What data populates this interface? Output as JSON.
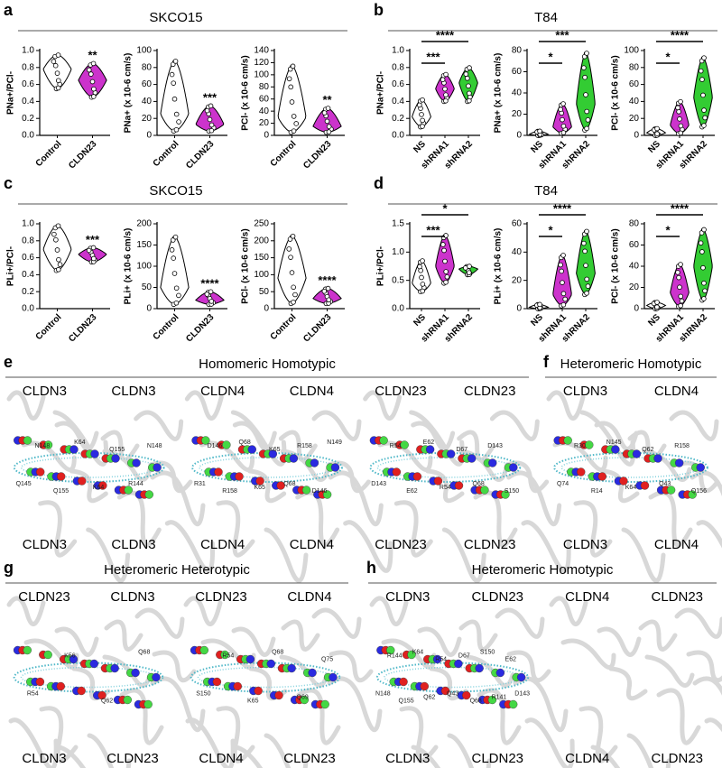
{
  "panels": [
    {
      "letter": "a",
      "title": "SKCO15",
      "brackets": false,
      "plots": [
        {
          "ylabel": "PNa+/PCl-",
          "ylim": [
            0,
            1
          ],
          "yticks": [
            {
              "value": 0,
              "label": "0.0"
            },
            {
              "value": 0.2,
              "label": "0.2"
            },
            {
              "value": 0.4,
              "label": "0.4"
            },
            {
              "value": 0.6,
              "label": "0.6"
            },
            {
              "value": 0.8,
              "label": "0.8"
            },
            {
              "value": 1,
              "label": "1.0"
            }
          ],
          "categories": [
            "Control",
            "CLDN23"
          ],
          "colors": [
            "#ffffff",
            "#cc33cc"
          ],
          "values": [
            0.78,
            0.65
          ],
          "ranges": [
            [
              0.55,
              0.95
            ],
            [
              0.45,
              0.85
            ]
          ],
          "significance": [
            null,
            "**"
          ]
        },
        {
          "ylabel": "PNa+ (x 10-6 cm/s)",
          "ylim": [
            0,
            100
          ],
          "yticks": [
            0,
            20,
            40,
            60,
            80,
            100
          ],
          "categories": [
            "Control",
            "CLDN23"
          ],
          "colors": [
            "#ffffff",
            "#cc33cc"
          ],
          "values": [
            25,
            13
          ],
          "ranges": [
            [
              5,
              88
            ],
            [
              5,
              35
            ]
          ],
          "significance": [
            null,
            "***"
          ]
        },
        {
          "ylabel": "PCl- (x 10-6 cm/s)",
          "ylim": [
            0,
            140
          ],
          "yticks": [
            0,
            20,
            40,
            60,
            80,
            100,
            120,
            140
          ],
          "categories": [
            "Control",
            "CLDN23"
          ],
          "colors": [
            "#ffffff",
            "#cc33cc"
          ],
          "values": [
            30,
            15
          ],
          "ranges": [
            [
              5,
              115
            ],
            [
              5,
              45
            ]
          ],
          "significance": [
            null,
            "**"
          ]
        }
      ]
    },
    {
      "letter": "b",
      "title": "T84",
      "brackets": true,
      "plots": [
        {
          "ylabel": "PNa+/PCl-",
          "ylim": [
            0,
            1
          ],
          "yticks": [
            {
              "value": 0,
              "label": "0.0"
            },
            {
              "value": 0.2,
              "label": "0.2"
            },
            {
              "value": 0.4,
              "label": "0.4"
            },
            {
              "value": 0.6,
              "label": "0.6"
            },
            {
              "value": 0.8,
              "label": "0.8"
            },
            {
              "value": 1,
              "label": "1.0"
            }
          ],
          "categories": [
            "NS",
            "shRNA1",
            "shRNA2"
          ],
          "colors": [
            "#ffffff",
            "#cc33cc",
            "#33cc33"
          ],
          "values": [
            0.22,
            0.55,
            0.62
          ],
          "ranges": [
            [
              0.1,
              0.42
            ],
            [
              0.4,
              0.72
            ],
            [
              0.4,
              0.8
            ]
          ],
          "significance": [
            null,
            "***",
            "****"
          ]
        },
        {
          "ylabel": "PNa+ (x 10-6 cm/s)",
          "ylim": [
            0,
            80
          ],
          "yticks": [
            0,
            20,
            40,
            60,
            80
          ],
          "categories": [
            "NS",
            "shRNA1",
            "shRNA2"
          ],
          "colors": [
            "#ffffff",
            "#cc33cc",
            "#33cc33"
          ],
          "values": [
            1,
            8,
            30
          ],
          "ranges": [
            [
              0,
              4
            ],
            [
              2,
              30
            ],
            [
              5,
              78
            ]
          ],
          "significance": [
            null,
            "*",
            "***"
          ]
        },
        {
          "ylabel": "PCl- (x 10-6 cm/s)",
          "ylim": [
            0,
            100
          ],
          "yticks": [
            0,
            20,
            40,
            60,
            80,
            100
          ],
          "categories": [
            "NS",
            "shRNA1",
            "shRNA2"
          ],
          "colors": [
            "#ffffff",
            "#cc33cc",
            "#33cc33"
          ],
          "values": [
            3,
            12,
            45
          ],
          "ranges": [
            [
              0,
              8
            ],
            [
              2,
              40
            ],
            [
              10,
              92
            ]
          ],
          "significance": [
            null,
            "*",
            "****"
          ]
        }
      ]
    },
    {
      "letter": "c",
      "title": "SKCO15",
      "brackets": false,
      "plots": [
        {
          "ylabel": "PLi+/PCl-",
          "ylim": [
            0,
            1
          ],
          "yticks": [
            {
              "value": 0,
              "label": "0.0"
            },
            {
              "value": 0.2,
              "label": "0.2"
            },
            {
              "value": 0.4,
              "label": "0.4"
            },
            {
              "value": 0.6,
              "label": "0.6"
            },
            {
              "value": 0.8,
              "label": "0.8"
            },
            {
              "value": 1,
              "label": "1.0"
            }
          ],
          "categories": [
            "Control",
            "CLDN23"
          ],
          "colors": [
            "#ffffff",
            "#cc33cc"
          ],
          "values": [
            0.7,
            0.64
          ],
          "ranges": [
            [
              0.45,
              0.98
            ],
            [
              0.55,
              0.72
            ]
          ],
          "significance": [
            null,
            "***"
          ]
        },
        {
          "ylabel": "PLi+ (x 10-6 cm/s)",
          "ylim": [
            0,
            200
          ],
          "yticks": [
            0,
            50,
            100,
            150,
            200
          ],
          "categories": [
            "Control",
            "CLDN23"
          ],
          "colors": [
            "#ffffff",
            "#cc33cc"
          ],
          "values": [
            50,
            20
          ],
          "ranges": [
            [
              10,
              170
            ],
            [
              10,
              40
            ]
          ],
          "significance": [
            null,
            "****"
          ]
        },
        {
          "ylabel": "PCl- (x 10-6 cm/s)",
          "ylim": [
            0,
            250
          ],
          "yticks": [
            0,
            50,
            100,
            150,
            200,
            250
          ],
          "categories": [
            "Control",
            "CLDN23"
          ],
          "colors": [
            "#ffffff",
            "#cc33cc"
          ],
          "values": [
            90,
            30
          ],
          "ranges": [
            [
              15,
              215
            ],
            [
              15,
              60
            ]
          ],
          "significance": [
            null,
            "****"
          ]
        }
      ]
    },
    {
      "letter": "d",
      "title": "T84",
      "brackets": true,
      "plots": [
        {
          "ylabel": "PLi+/PCl-",
          "ylim": [
            0,
            1.5
          ],
          "yticks": [
            {
              "value": 0,
              "label": "0.0"
            },
            {
              "value": 0.5,
              "label": "0.5"
            },
            {
              "value": 1,
              "label": "1.0"
            },
            {
              "value": 1.5,
              "label": "1.5"
            }
          ],
          "categories": [
            "NS",
            "shRNA1",
            "shRNA2"
          ],
          "colors": [
            "#ffffff",
            "#cc33cc",
            "#33cc33"
          ],
          "values": [
            0.45,
            0.75,
            0.7
          ],
          "ranges": [
            [
              0.3,
              0.85
            ],
            [
              0.45,
              1.3
            ],
            [
              0.6,
              0.75
            ]
          ],
          "significance": [
            null,
            "***",
            "*"
          ]
        },
        {
          "ylabel": "PLi+ (x 10-6 cm/s)",
          "ylim": [
            0,
            60
          ],
          "yticks": [
            0,
            20,
            40,
            60
          ],
          "categories": [
            "NS",
            "shRNA1",
            "shRNA2"
          ],
          "colors": [
            "#ffffff",
            "#cc33cc",
            "#33cc33"
          ],
          "values": [
            1,
            10,
            25
          ],
          "ranges": [
            [
              0,
              3
            ],
            [
              2,
              38
            ],
            [
              10,
              55
            ]
          ],
          "significance": [
            null,
            "*",
            "****"
          ]
        },
        {
          "ylabel": "PCl- (x 10-6 cm/s)",
          "ylim": [
            0,
            80
          ],
          "yticks": [
            0,
            20,
            40,
            60,
            80
          ],
          "categories": [
            "NS",
            "shRNA1",
            "shRNA2"
          ],
          "colors": [
            "#ffffff",
            "#cc33cc",
            "#33cc33"
          ],
          "values": [
            3,
            15,
            40
          ],
          "ranges": [
            [
              0,
              6
            ],
            [
              2,
              42
            ],
            [
              8,
              75
            ]
          ],
          "significance": [
            null,
            "*",
            "****"
          ]
        }
      ]
    }
  ],
  "label_colors": {
    "CLDN3": "#2424d8",
    "CLDN4": "#f28a1a",
    "CLDN23": "#3ccc3c"
  },
  "structures": [
    {
      "letter": "e",
      "title": "Homomeric Homotypic",
      "complexes": [
        {
          "top": [
            "CLDN3",
            "CLDN3"
          ],
          "bottom": [
            "CLDN3",
            "CLDN3"
          ],
          "residues": [
            "Q145",
            "N148",
            "Q155",
            "K64",
            "K64",
            "Q155",
            "R144",
            "N148"
          ]
        },
        {
          "top": [
            "CLDN4",
            "CLDN4"
          ],
          "bottom": [
            "CLDN4",
            "CLDN4"
          ],
          "residues": [
            "R31",
            "D146",
            "R158",
            "Q68",
            "K65",
            "K65",
            "Q68",
            "R158",
            "D146",
            "N149"
          ]
        },
        {
          "top": [
            "CLDN23",
            "CLDN23"
          ],
          "bottom": [
            "CLDN23",
            "CLDN23"
          ],
          "residues": [
            "D143",
            "R54",
            "E62",
            "E62",
            "R54",
            "D67",
            "Q68",
            "D143",
            "S150"
          ]
        }
      ]
    },
    {
      "letter": "f",
      "title": "Heteromeric Homotypic",
      "complexes": [
        {
          "top": [
            "CLDN3",
            "CLDN4"
          ],
          "bottom": [
            "CLDN3",
            "CLDN4"
          ],
          "residues": [
            "Q74",
            "R30",
            "R14",
            "N145",
            "K64",
            "Q62",
            "Q43",
            "R158",
            "Q156"
          ]
        }
      ]
    },
    {
      "letter": "g",
      "title": "Heteromeric Heterotypic",
      "complexes": [
        {
          "top": [
            "CLDN23",
            "CLDN3"
          ],
          "bottom": [
            "CLDN3",
            "CLDN23"
          ],
          "residues": [
            "R54",
            "K56",
            "Q62",
            "Q68"
          ]
        },
        {
          "top": [
            "CLDN23",
            "CLDN4"
          ],
          "bottom": [
            "CLDN4",
            "CLDN23"
          ],
          "residues": [
            "S150",
            "R54",
            "K65",
            "Q68",
            "Q69",
            "Q75"
          ]
        }
      ]
    },
    {
      "letter": "h",
      "title": "Heteromeric Homotypic",
      "complexes": [
        {
          "top": [
            "CLDN3",
            "CLDN23"
          ],
          "bottom": [
            "CLDN3",
            "CLDN23"
          ],
          "residues": [
            "N148",
            "R144",
            "Q155",
            "K64",
            "Q62",
            "R54",
            "Q43",
            "D67",
            "Q68",
            "S150",
            "R141",
            "E62",
            "D143"
          ]
        },
        {
          "top": [
            "CLDN4",
            "CLDN23"
          ],
          "bottom": [
            "CLDN4",
            "CLDN23"
          ],
          "residues": []
        }
      ]
    }
  ]
}
